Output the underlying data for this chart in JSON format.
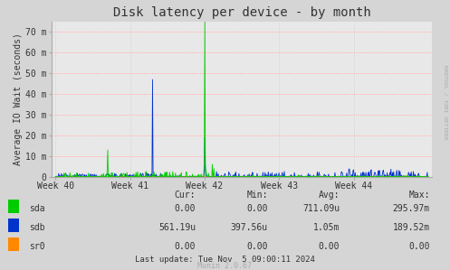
{
  "title": "Disk latency per device - by month",
  "ylabel": "Average IO Wait (seconds)",
  "background_color": "#d5d5d5",
  "plot_bg_color": "#e8e8e8",
  "grid_color_h": "#ff9999",
  "grid_color_v": "#cccccc",
  "yticks": [
    0,
    10,
    20,
    30,
    40,
    50,
    60,
    70
  ],
  "ytick_labels": [
    "0",
    "10 m",
    "20 m",
    "30 m",
    "40 m",
    "50 m",
    "60 m",
    "70 m"
  ],
  "ylim": [
    0,
    75
  ],
  "xtick_positions": [
    0,
    1,
    2,
    3,
    4
  ],
  "xtick_labels": [
    "Week 40",
    "Week 41",
    "Week 42",
    "Week 43",
    "Week 44"
  ],
  "legend": [
    {
      "label": "sda",
      "color": "#00cc00"
    },
    {
      "label": "sdb",
      "color": "#0033cc"
    },
    {
      "label": "sr0",
      "color": "#ff8800"
    }
  ],
  "table_headers": [
    "Cur:",
    "Min:",
    "Avg:",
    "Max:"
  ],
  "table_data": [
    [
      "sda",
      "0.00",
      "0.00",
      "711.09u",
      "295.97m"
    ],
    [
      "sdb",
      "561.19u",
      "397.56u",
      "1.05m",
      "189.52m"
    ],
    [
      "sr0",
      "0.00",
      "0.00",
      "0.00",
      "0.00"
    ]
  ],
  "footer": "Last update: Tue Nov  5 09:00:11 2024",
  "munin_label": "Munin 2.0.67",
  "rrdtool_label": "RRDTOOL / TOBI OETIKER"
}
